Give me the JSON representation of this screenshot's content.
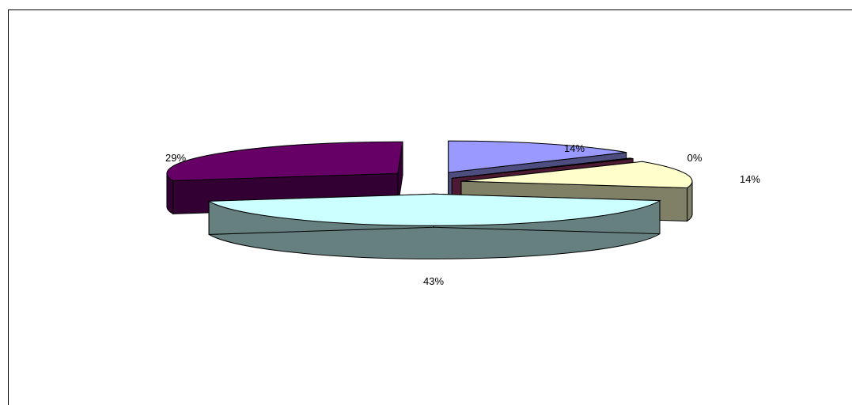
{
  "chart_data": {
    "type": "pie",
    "style": "3d-exploded",
    "legend": "none",
    "slices": [
      {
        "value": 14,
        "label": "14%",
        "top_color": "#9999ff",
        "side_color": "#4d4d80"
      },
      {
        "value": 0,
        "label": "0%",
        "top_color": "#993366",
        "side_color": "#4d1a33"
      },
      {
        "value": 14,
        "label": "14%",
        "top_color": "#ffffcc",
        "side_color": "#808066"
      },
      {
        "value": 43,
        "label": "43%",
        "top_color": "#ccffff",
        "side_color": "#668080"
      },
      {
        "value": 29,
        "label": "29%",
        "top_color": "#660066",
        "side_color": "#330033"
      }
    ]
  }
}
